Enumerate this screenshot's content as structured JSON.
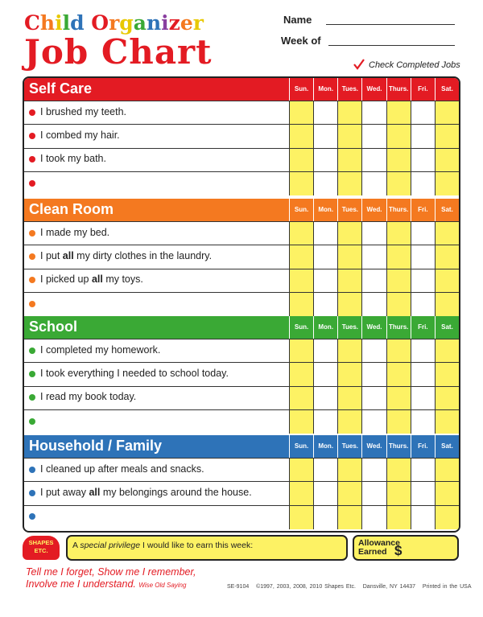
{
  "header": {
    "title_line1": "Child Organizer",
    "title_line2": "Job Chart",
    "name_label": "Name",
    "week_label": "Week of",
    "check_label": "Check Completed Jobs"
  },
  "days": [
    "Sun.",
    "Mon.",
    "Tues.",
    "Wed.",
    "Thurs.",
    "Fri.",
    "Sat."
  ],
  "sections": [
    {
      "title": "Self Care",
      "color": "#e31b23",
      "tasks": [
        [
          "I brushed my teeth."
        ],
        [
          "I combed my hair."
        ],
        [
          "I took my bath."
        ]
      ]
    },
    {
      "title": "Clean Room",
      "color": "#f47920",
      "tasks": [
        [
          "I made my bed."
        ],
        [
          "I put ",
          "all",
          " my dirty clothes in the laundry."
        ],
        [
          "I picked up ",
          "all",
          " my toys."
        ]
      ]
    },
    {
      "title": "School",
      "color": "#3aa935",
      "tasks": [
        [
          "I completed my homework."
        ],
        [
          "I took everything I needed to school today."
        ],
        [
          "I read my book today."
        ]
      ]
    },
    {
      "title": "Household / Family",
      "color": "#2e73b8",
      "tasks": [
        [
          "I cleaned up after meals and snacks."
        ],
        [
          "I put away ",
          "all",
          " my belongings around the house."
        ]
      ]
    }
  ],
  "footer": {
    "logo": [
      "SHAPES",
      "ETC."
    ],
    "privilege": [
      "A ",
      "special privilege",
      " I would like to earn this week:"
    ],
    "allowance": [
      "Allowance",
      "Earned"
    ],
    "dollar": "$",
    "quote": [
      "Tell me I forget, Show me I remember,",
      "Involve me I understand."
    ],
    "quote_source": "Wise Old Saying",
    "code": "SE-9104",
    "copyright": "©1997, 2003, 2008, 2010 Shapes Etc.",
    "address": "Dansville, NY 14437",
    "printed": "Printed in the USA"
  }
}
